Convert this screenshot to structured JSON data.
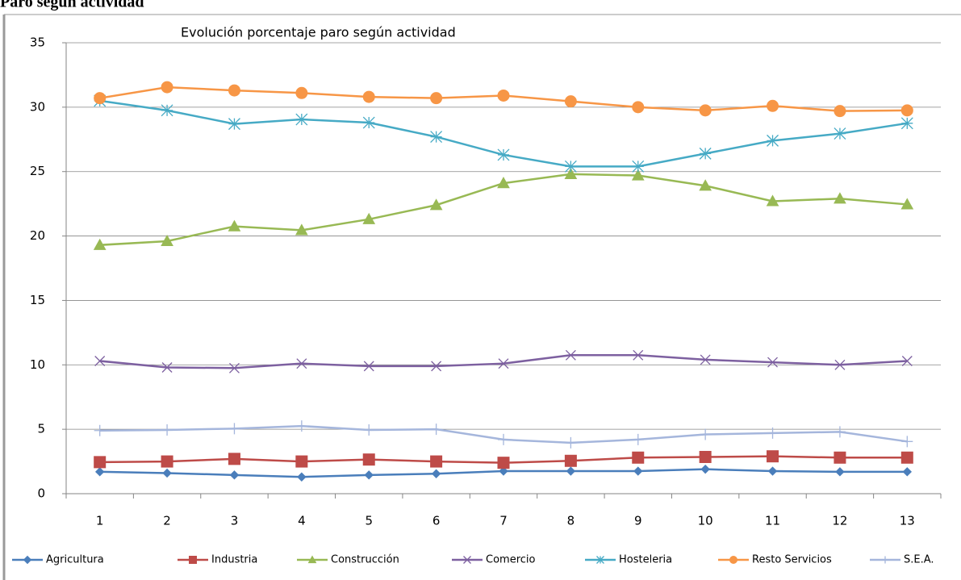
{
  "header": {
    "title": "Paro según actividad"
  },
  "chart_data": {
    "type": "line",
    "title": "Evolución porcentaje paro según actividad",
    "categories": [
      "1",
      "2",
      "3",
      "4",
      "5",
      "6",
      "7",
      "8",
      "9",
      "10",
      "11",
      "12",
      "13"
    ],
    "ylim": [
      0,
      35
    ],
    "yticks": [
      0,
      5,
      10,
      15,
      20,
      25,
      30,
      35
    ],
    "grid": true,
    "legend": "bottom",
    "series": [
      {
        "name": "Agricultura",
        "color": "#4a7ebb",
        "marker": "diamond",
        "values": [
          1.7,
          1.6,
          1.45,
          1.3,
          1.45,
          1.55,
          1.75,
          1.75,
          1.75,
          1.9,
          1.75,
          1.7,
          1.7
        ]
      },
      {
        "name": "Industria",
        "color": "#be4b48",
        "marker": "square",
        "values": [
          2.45,
          2.5,
          2.7,
          2.5,
          2.65,
          2.5,
          2.4,
          2.55,
          2.8,
          2.85,
          2.9,
          2.8,
          2.8
        ]
      },
      {
        "name": "Construcción",
        "color": "#98b954",
        "marker": "triangle",
        "values": [
          19.3,
          19.6,
          20.75,
          20.45,
          21.3,
          22.4,
          24.1,
          24.8,
          24.7,
          23.9,
          22.7,
          22.9,
          22.45
        ]
      },
      {
        "name": "Comercio",
        "color": "#7d60a0",
        "marker": "x",
        "values": [
          10.3,
          9.8,
          9.75,
          10.1,
          9.9,
          9.9,
          10.1,
          10.75,
          10.75,
          10.4,
          10.2,
          10.0,
          10.3
        ]
      },
      {
        "name": "Hosteleria",
        "color": "#46aac5",
        "marker": "star",
        "values": [
          30.5,
          29.75,
          28.7,
          29.05,
          28.8,
          27.7,
          26.3,
          25.4,
          25.4,
          26.4,
          27.4,
          27.95,
          28.75
        ]
      },
      {
        "name": "Resto Servicios",
        "color": "#f79646",
        "marker": "circle",
        "values": [
          30.7,
          31.55,
          31.3,
          31.1,
          30.8,
          30.7,
          30.9,
          30.45,
          30.0,
          29.75,
          30.1,
          29.7,
          29.75
        ]
      },
      {
        "name": "S.E.A.",
        "color": "#a5b6dc",
        "marker": "plus",
        "values": [
          4.9,
          4.95,
          5.05,
          5.25,
          4.95,
          5.0,
          4.2,
          3.95,
          4.2,
          4.6,
          4.7,
          4.8,
          4.05
        ]
      }
    ]
  }
}
